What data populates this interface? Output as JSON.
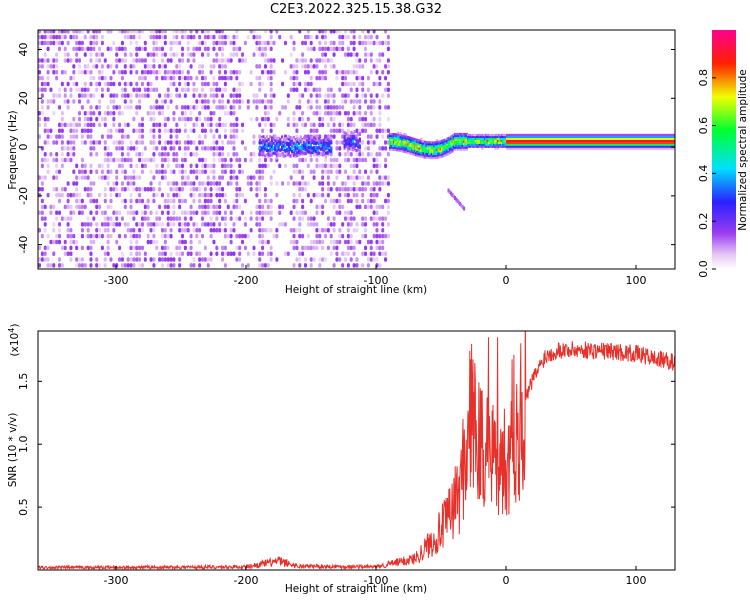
{
  "title": "C2E3.2022.325.15.38.G32",
  "chart_data": [
    {
      "type": "heatmap",
      "xlabel": "Height of straight line (km)",
      "ylabel": "Frequency (Hz)",
      "xlim": [
        -360,
        130
      ],
      "ylim": [
        -50,
        48
      ],
      "xticks": [
        -300,
        -200,
        -100,
        0,
        100
      ],
      "yticks": [
        -40,
        -20,
        0,
        20,
        40
      ],
      "colorbar": {
        "label": "Normalized spectral amplitude",
        "ticks": [
          0.0,
          0.2,
          0.4,
          0.6,
          0.8
        ],
        "range": [
          0,
          1
        ],
        "colormap": "rainbow (white-violet-blue-cyan-green-yellow-red-magenta)"
      },
      "features": [
        {
          "name": "noise",
          "x_range": [
            -360,
            -90
          ],
          "freq_range": [
            -50,
            48
          ],
          "amplitude": 0.05
        },
        {
          "name": "blob",
          "x_range": [
            -190,
            -135
          ],
          "freq_center": 0,
          "amplitude": 0.35
        },
        {
          "name": "blob",
          "x_range": [
            -125,
            -113
          ],
          "freq_center": 2,
          "amplitude": 0.3
        },
        {
          "name": "track",
          "x_range": [
            -90,
            130
          ],
          "freq_start": 2,
          "freq_end": 2,
          "amplitude_peak": 0.95
        },
        {
          "name": "tail",
          "x_range": [
            -45,
            -32
          ],
          "freq_start": -18,
          "freq_end": -26,
          "amplitude": 0.1
        }
      ]
    },
    {
      "type": "line",
      "xlabel": "Height of straight line (km)",
      "ylabel": "SNR (10 * v/v)",
      "y_multiplier": "(x10",
      "y_exponent": "4",
      "xlim": [
        -360,
        130
      ],
      "ylim": [
        0,
        19000
      ],
      "xticks": [
        -300,
        -200,
        -100,
        0,
        100
      ],
      "yticks": [
        5000,
        10000,
        15000
      ],
      "ytick_labels": [
        "0.5",
        "1.0",
        "1.5"
      ],
      "color": "#e8302a",
      "x": [
        -360,
        -300,
        -200,
        -175,
        -160,
        -100,
        -70,
        -55,
        -45,
        -35,
        -28,
        -20,
        -12,
        -5,
        0,
        5,
        10,
        20,
        30,
        40,
        60,
        80,
        100,
        115,
        130
      ],
      "y": [
        200,
        200,
        250,
        700,
        300,
        250,
        900,
        2500,
        4000,
        6500,
        12000,
        10000,
        9000,
        9500,
        8000,
        11000,
        12000,
        15000,
        17000,
        17500,
        17500,
        17400,
        17200,
        16800,
        16500
      ]
    }
  ]
}
